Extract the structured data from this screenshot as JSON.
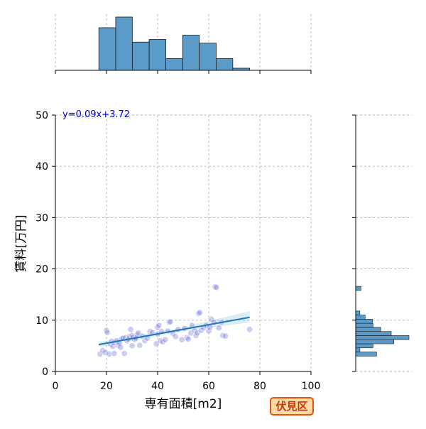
{
  "chart_data": {
    "type": "scatter",
    "title": "",
    "xlabel": "専有面積[m2]",
    "ylabel": "賃料[万円]",
    "xlim": [
      0,
      100
    ],
    "ylim": [
      0,
      50
    ],
    "x_ticks": [
      "0",
      "20",
      "40",
      "60",
      "80",
      "100"
    ],
    "y_ticks": [
      "0",
      "10",
      "20",
      "30",
      "40",
      "50"
    ],
    "grid": true,
    "point_color": "#6a6fd6",
    "fit_color": "#1f77b4",
    "hist_color": "#5b9bc9",
    "regression": {
      "equation": "y=0.09x+3.72",
      "slope": 0.09,
      "intercept": 3.72,
      "x_range": [
        17,
        76
      ],
      "color": "#0000cc"
    },
    "points": [
      {
        "x": 17.5,
        "y": 3.4
      },
      {
        "x": 18.5,
        "y": 4.1
      },
      {
        "x": 19.5,
        "y": 3.7
      },
      {
        "x": 20.0,
        "y": 8.0
      },
      {
        "x": 20.3,
        "y": 7.6
      },
      {
        "x": 21.0,
        "y": 3.4
      },
      {
        "x": 21.5,
        "y": 5.3
      },
      {
        "x": 22.0,
        "y": 5.9
      },
      {
        "x": 22.5,
        "y": 4.9
      },
      {
        "x": 23.0,
        "y": 3.5
      },
      {
        "x": 23.0,
        "y": 5.6
      },
      {
        "x": 24.0,
        "y": 6.0
      },
      {
        "x": 24.5,
        "y": 5.1
      },
      {
        "x": 25.0,
        "y": 5.5
      },
      {
        "x": 25.5,
        "y": 4.7
      },
      {
        "x": 26.0,
        "y": 6.4
      },
      {
        "x": 26.5,
        "y": 6.5
      },
      {
        "x": 27.0,
        "y": 3.5
      },
      {
        "x": 27.5,
        "y": 6.6
      },
      {
        "x": 28.0,
        "y": 6.0
      },
      {
        "x": 28.5,
        "y": 6.3
      },
      {
        "x": 29.0,
        "y": 6.8
      },
      {
        "x": 29.5,
        "y": 8.2
      },
      {
        "x": 30.0,
        "y": 7.0
      },
      {
        "x": 30.0,
        "y": 5.0
      },
      {
        "x": 30.5,
        "y": 6.7
      },
      {
        "x": 31.0,
        "y": 6.2
      },
      {
        "x": 31.5,
        "y": 6.5
      },
      {
        "x": 32.0,
        "y": 7.2
      },
      {
        "x": 32.5,
        "y": 7.5
      },
      {
        "x": 33.0,
        "y": 5.1
      },
      {
        "x": 34.0,
        "y": 6.9
      },
      {
        "x": 35.0,
        "y": 6.0
      },
      {
        "x": 36.0,
        "y": 6.5
      },
      {
        "x": 37.0,
        "y": 7.8
      },
      {
        "x": 38.0,
        "y": 7.6
      },
      {
        "x": 39.5,
        "y": 5.4
      },
      {
        "x": 40.0,
        "y": 8.6
      },
      {
        "x": 40.0,
        "y": 7.3
      },
      {
        "x": 40.5,
        "y": 9.0
      },
      {
        "x": 41.0,
        "y": 6.0
      },
      {
        "x": 41.5,
        "y": 7.8
      },
      {
        "x": 42.0,
        "y": 5.8
      },
      {
        "x": 43.0,
        "y": 6.2
      },
      {
        "x": 44.0,
        "y": 7.9
      },
      {
        "x": 44.5,
        "y": 9.6
      },
      {
        "x": 45.0,
        "y": 9.7
      },
      {
        "x": 46.0,
        "y": 7.4
      },
      {
        "x": 47.0,
        "y": 6.8
      },
      {
        "x": 48.0,
        "y": 8.2
      },
      {
        "x": 49.5,
        "y": 6.2
      },
      {
        "x": 50.5,
        "y": 8.4
      },
      {
        "x": 51.5,
        "y": 6.6
      },
      {
        "x": 52.0,
        "y": 6.3
      },
      {
        "x": 53.0,
        "y": 7.5
      },
      {
        "x": 53.5,
        "y": 9.0
      },
      {
        "x": 54.5,
        "y": 8.0
      },
      {
        "x": 55.0,
        "y": 7.0
      },
      {
        "x": 55.5,
        "y": 7.5
      },
      {
        "x": 56.0,
        "y": 11.3
      },
      {
        "x": 56.5,
        "y": 11.5
      },
      {
        "x": 57.0,
        "y": 8.0
      },
      {
        "x": 58.0,
        "y": 8.5
      },
      {
        "x": 59.0,
        "y": 9.0
      },
      {
        "x": 60.0,
        "y": 7.9
      },
      {
        "x": 60.5,
        "y": 8.6
      },
      {
        "x": 61.0,
        "y": 10.2
      },
      {
        "x": 62.0,
        "y": 9.6
      },
      {
        "x": 62.5,
        "y": 16.5
      },
      {
        "x": 63.0,
        "y": 16.4
      },
      {
        "x": 64.0,
        "y": 8.5
      },
      {
        "x": 65.0,
        "y": 9.6
      },
      {
        "x": 65.5,
        "y": 7.0
      },
      {
        "x": 66.5,
        "y": 6.9
      },
      {
        "x": 76.0,
        "y": 8.2
      }
    ],
    "x_hist": {
      "bin_edges": [
        17,
        23.6,
        30.1,
        36.7,
        43.2,
        49.8,
        56.3,
        62.9,
        69.4,
        76
      ],
      "counts": [
        8,
        10,
        5.3,
        5.8,
        2.2,
        6.6,
        5.1,
        2.2,
        0.4
      ]
    },
    "y_hist": {
      "bin_edges": [
        3,
        3.8,
        4.6,
        5.4,
        6.2,
        7.0,
        7.8,
        8.6,
        9.4,
        10.2,
        11.0,
        11.8,
        12.6,
        13.4,
        14.2,
        15.0,
        15.8,
        16.6
      ],
      "counts": [
        4,
        0.8,
        3.3,
        7.3,
        10.2,
        6.8,
        4.8,
        3.3,
        3.2,
        1.8,
        0.8,
        0,
        0,
        0,
        0,
        0,
        1
      ]
    }
  },
  "legend_badge": {
    "text": "伏見区",
    "border_color": "#e8540c",
    "fill_color": "#ffd9a6",
    "text_color": "#c0370b"
  }
}
